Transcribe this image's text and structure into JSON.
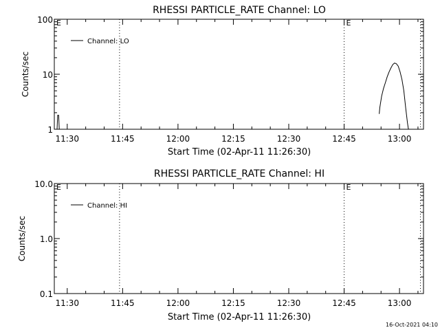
{
  "timestamp": "16-Oct-2021 04:10",
  "chart_data": [
    {
      "type": "line",
      "title": "RHESSI PARTICLE_RATE Channel: LO",
      "xlabel": "Start Time (02-Apr-11 11:26:30)",
      "ylabel": "Counts/sec",
      "legend": "Channel: LO",
      "legend_position": "top-left",
      "yscale": "log",
      "ylim": [
        1,
        100
      ],
      "yticks": [
        1,
        10,
        100
      ],
      "ytick_labels": [
        "1",
        "10",
        "100"
      ],
      "xlim": [
        "11:26:30",
        "13:06:30"
      ],
      "xticks": [
        "11:30",
        "11:45",
        "12:00",
        "12:15",
        "12:30",
        "12:45",
        "13:00"
      ],
      "event_lines": [
        "11:44:10",
        "12:45:00",
        "13:05:40"
      ],
      "event_markers": [
        {
          "label": "E",
          "time": "11:26:30"
        },
        {
          "label": "E",
          "time": "12:45:00"
        }
      ],
      "series": [
        {
          "segments": [
            [
              [
                "11:27:15",
                1.0
              ],
              [
                "11:27:25",
                1.8
              ],
              [
                "11:27:40",
                1.8
              ],
              [
                "11:27:50",
                1.0
              ]
            ],
            [
              [
                "12:54:30",
                1.9
              ],
              [
                "12:54:40",
                2.5
              ],
              [
                "12:55:10",
                4.0
              ],
              [
                "12:55:40",
                5.5
              ],
              [
                "12:56:10",
                7.0
              ],
              [
                "12:56:40",
                9.0
              ],
              [
                "12:57:10",
                11.0
              ],
              [
                "12:57:40",
                13.0
              ],
              [
                "12:58:10",
                15.0
              ],
              [
                "12:58:40",
                16.0
              ],
              [
                "12:59:10",
                15.5
              ],
              [
                "12:59:40",
                14.0
              ],
              [
                "13:00:10",
                11.0
              ],
              [
                "13:00:40",
                8.0
              ],
              [
                "13:01:10",
                5.0
              ],
              [
                "13:01:40",
                2.5
              ],
              [
                "13:02:10",
                1.3
              ],
              [
                "13:02:25",
                1.0
              ]
            ]
          ]
        }
      ]
    },
    {
      "type": "line",
      "title": "RHESSI PARTICLE_RATE Channel: HI",
      "xlabel": "Start Time (02-Apr-11 11:26:30)",
      "ylabel": "Counts/sec",
      "legend": "Channel: HI",
      "legend_position": "top-left",
      "yscale": "log",
      "ylim": [
        0.1,
        10
      ],
      "yticks": [
        0.1,
        1,
        10
      ],
      "ytick_labels": [
        "0.1",
        "1.0",
        "10.0"
      ],
      "xlim": [
        "11:26:30",
        "13:06:30"
      ],
      "xticks": [
        "11:30",
        "11:45",
        "12:00",
        "12:15",
        "12:30",
        "12:45",
        "13:00"
      ],
      "event_lines": [
        "11:44:10",
        "12:45:00",
        "13:05:40"
      ],
      "event_markers": [
        {
          "label": "E",
          "time": "11:26:30"
        },
        {
          "label": "E",
          "time": "12:45:00"
        }
      ],
      "series": [
        {
          "segments": []
        }
      ]
    }
  ]
}
